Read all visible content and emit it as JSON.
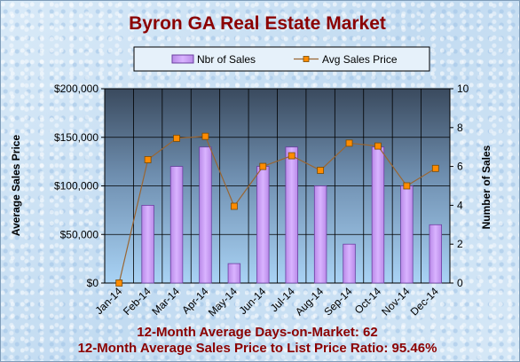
{
  "chart_data": {
    "type": "bar",
    "title": "Byron  GA Real Estate Market",
    "categories": [
      "Jan-14",
      "Feb-14",
      "Mar-14",
      "Apr-14",
      "May-14",
      "Jun-14",
      "Jul-14",
      "Aug-14",
      "Sep-14",
      "Oct-14",
      "Nov-14",
      "Dec-14"
    ],
    "series": [
      {
        "name": "Nbr of Sales",
        "type": "bar",
        "axis": "right",
        "values": [
          0,
          4,
          6,
          7,
          1,
          6,
          7,
          5,
          2,
          7,
          5,
          3
        ],
        "color": "#cc99ff"
      },
      {
        "name": "Avg Sales Price",
        "type": "line",
        "axis": "left",
        "values": [
          0,
          127000,
          149000,
          151000,
          79000,
          120000,
          131000,
          116000,
          144000,
          141000,
          100000,
          118000
        ],
        "color": "#996633"
      }
    ],
    "ylabel_left": "Average Sales Price",
    "ylabel_right": "Number of Sales",
    "ylim_left": [
      0,
      200000
    ],
    "ylim_right": [
      0,
      10
    ],
    "yticks_left": [
      "$0",
      "$50,000",
      "$100,000",
      "$150,000",
      "$200,000"
    ],
    "yticks_right": [
      "0",
      "2",
      "4",
      "6",
      "8",
      "10"
    ],
    "grid": true,
    "legend_position": "top"
  },
  "footer": {
    "line1": "12-Month Average Days-on-Market: 62",
    "line2": "12-Month Average Sales Price to List Price Ratio: 95.46%"
  }
}
